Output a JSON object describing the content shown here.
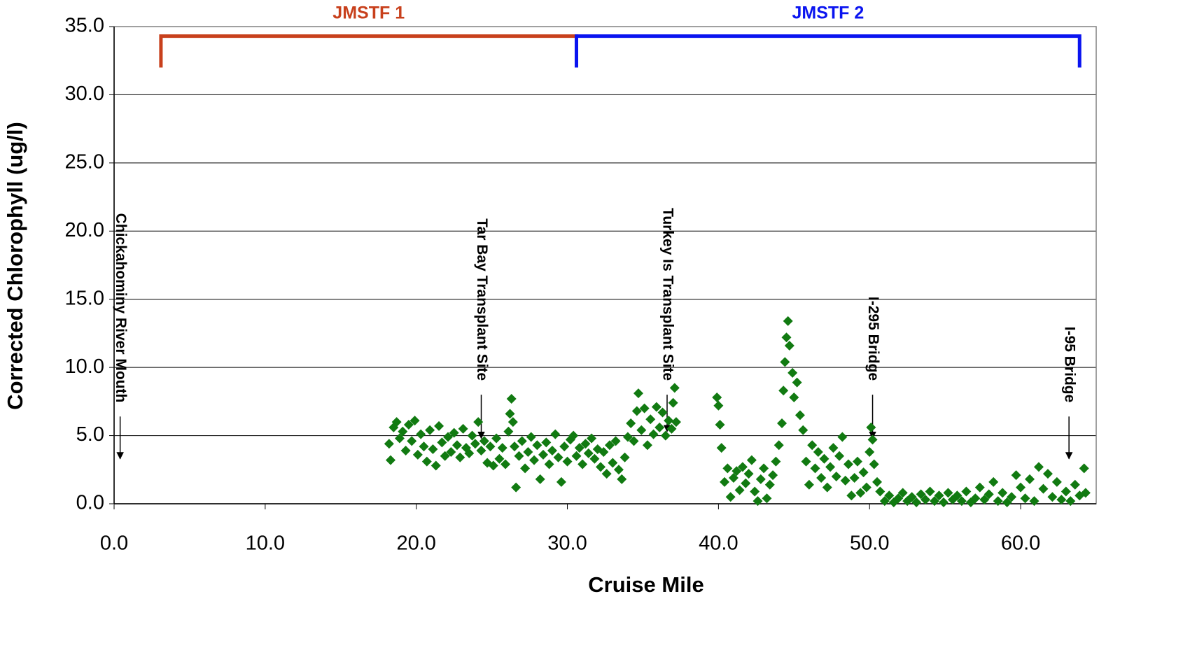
{
  "chart_data": {
    "type": "scatter",
    "xlabel": "Cruise Mile",
    "ylabel": "Corrected Chlorophyll (ug/l)",
    "xlim": [
      0,
      65
    ],
    "ylim": [
      0,
      35
    ],
    "xticks": [
      {
        "value": 0,
        "label": "0.0"
      },
      {
        "value": 10,
        "label": "10.0"
      },
      {
        "value": 20,
        "label": "20.0"
      },
      {
        "value": 30,
        "label": "30.0"
      },
      {
        "value": 40,
        "label": "40.0"
      },
      {
        "value": 50,
        "label": "50.0"
      },
      {
        "value": 60,
        "label": "60.0"
      }
    ],
    "yticks": [
      {
        "value": 0,
        "label": "0.0"
      },
      {
        "value": 5,
        "label": "5.0"
      },
      {
        "value": 10,
        "label": "10.0"
      },
      {
        "value": 15,
        "label": "15.0"
      },
      {
        "value": 20,
        "label": "20.0"
      },
      {
        "value": 25,
        "label": "25.0"
      },
      {
        "value": 30,
        "label": "30.0"
      },
      {
        "value": 35,
        "label": "35.0"
      }
    ],
    "grid": true,
    "x": [
      18.2,
      18.3,
      18.5,
      18.7,
      18.9,
      19.1,
      19.3,
      19.5,
      19.7,
      19.9,
      20.1,
      20.3,
      20.5,
      20.7,
      20.9,
      21.1,
      21.3,
      21.5,
      21.7,
      21.9,
      22.1,
      22.3,
      22.5,
      22.7,
      22.9,
      23.1,
      23.3,
      23.5,
      23.7,
      23.9,
      24.1,
      24.3,
      24.5,
      24.7,
      24.9,
      25.1,
      25.3,
      25.5,
      25.7,
      25.9,
      26.1,
      26.2,
      26.3,
      26.4,
      26.5,
      26.6,
      26.8,
      27.0,
      27.2,
      27.4,
      27.6,
      27.8,
      28.0,
      28.2,
      28.4,
      28.6,
      28.8,
      29.0,
      29.2,
      29.4,
      29.6,
      29.8,
      30.0,
      30.2,
      30.4,
      30.6,
      30.8,
      31.0,
      31.2,
      31.4,
      31.6,
      31.8,
      32.0,
      32.2,
      32.4,
      32.6,
      32.8,
      33.0,
      33.2,
      33.4,
      33.6,
      33.8,
      34.0,
      34.2,
      34.4,
      34.6,
      34.7,
      34.9,
      35.1,
      35.3,
      35.5,
      35.7,
      35.9,
      36.1,
      36.3,
      36.5,
      36.7,
      36.9,
      37.0,
      37.1,
      37.2,
      39.9,
      40.0,
      40.1,
      40.2,
      40.4,
      40.6,
      40.8,
      41.0,
      41.2,
      41.4,
      41.6,
      41.8,
      42.0,
      42.2,
      42.4,
      42.6,
      42.8,
      43.0,
      43.2,
      43.4,
      43.6,
      43.8,
      44.0,
      44.2,
      44.3,
      44.4,
      44.5,
      44.6,
      44.7,
      44.9,
      45.0,
      45.2,
      45.4,
      45.6,
      45.8,
      46.0,
      46.2,
      46.4,
      46.6,
      46.8,
      47.0,
      47.2,
      47.4,
      47.6,
      47.8,
      48.0,
      48.2,
      48.4,
      48.6,
      48.8,
      49.0,
      49.2,
      49.4,
      49.6,
      49.8,
      50.0,
      50.1,
      50.2,
      50.3,
      50.5,
      50.7,
      51.0,
      51.3,
      51.6,
      51.9,
      52.2,
      52.5,
      52.8,
      53.1,
      53.4,
      53.7,
      54.0,
      54.3,
      54.6,
      54.9,
      55.2,
      55.5,
      55.8,
      56.1,
      56.4,
      56.7,
      57.0,
      57.3,
      57.6,
      57.9,
      58.2,
      58.5,
      58.8,
      59.1,
      59.4,
      59.7,
      60.0,
      60.3,
      60.6,
      60.9,
      61.2,
      61.5,
      61.8,
      62.1,
      62.4,
      62.7,
      63.0,
      63.3,
      63.6,
      63.9,
      64.2,
      64.3
    ],
    "series": [
      {
        "color": "#117a11",
        "values": [
          4.4,
          3.2,
          5.6,
          6.0,
          4.8,
          5.3,
          3.9,
          5.8,
          4.6,
          6.1,
          3.6,
          5.1,
          4.2,
          3.1,
          5.4,
          4.0,
          2.8,
          5.7,
          4.5,
          3.5,
          4.9,
          3.8,
          5.2,
          4.3,
          3.4,
          5.5,
          4.1,
          3.7,
          5.0,
          4.4,
          6.0,
          3.9,
          4.6,
          3.0,
          4.2,
          2.8,
          4.8,
          3.3,
          4.1,
          2.9,
          5.3,
          6.6,
          7.7,
          6.0,
          4.2,
          1.2,
          3.5,
          4.6,
          2.6,
          3.8,
          4.9,
          3.2,
          4.3,
          1.8,
          3.6,
          4.5,
          2.9,
          3.9,
          5.1,
          3.4,
          1.6,
          4.2,
          3.1,
          4.7,
          5.0,
          3.5,
          4.1,
          2.9,
          4.4,
          3.7,
          4.8,
          3.3,
          4.0,
          2.7,
          3.8,
          2.2,
          4.3,
          3.0,
          4.6,
          2.5,
          1.8,
          3.4,
          4.9,
          5.9,
          4.6,
          6.8,
          8.1,
          5.4,
          7.0,
          4.3,
          6.2,
          5.1,
          7.1,
          5.6,
          6.7,
          5.0,
          6.1,
          5.5,
          7.4,
          8.5,
          6.0,
          7.8,
          7.2,
          5.8,
          4.1,
          1.6,
          2.6,
          0.5,
          1.9,
          2.4,
          1.0,
          2.7,
          1.5,
          2.2,
          3.2,
          0.9,
          0.2,
          1.8,
          2.6,
          0.4,
          1.4,
          2.1,
          3.1,
          4.3,
          5.9,
          8.3,
          10.4,
          12.2,
          13.4,
          11.6,
          9.6,
          7.8,
          8.9,
          6.5,
          5.4,
          3.1,
          1.4,
          4.3,
          2.6,
          3.8,
          1.9,
          3.3,
          1.2,
          2.7,
          4.1,
          2.0,
          3.5,
          4.9,
          1.7,
          2.9,
          0.6,
          1.9,
          3.1,
          0.8,
          2.3,
          1.2,
          3.8,
          5.6,
          4.7,
          2.9,
          1.6,
          0.9,
          0.2,
          0.6,
          0.1,
          0.4,
          0.8,
          0.2,
          0.5,
          0.1,
          0.7,
          0.3,
          0.9,
          0.2,
          0.6,
          0.1,
          0.8,
          0.3,
          0.6,
          0.2,
          0.9,
          0.1,
          0.4,
          1.2,
          0.3,
          0.7,
          1.6,
          0.2,
          0.8,
          0.1,
          0.5,
          2.1,
          1.2,
          0.4,
          1.8,
          0.2,
          2.7,
          1.1,
          2.2,
          0.5,
          1.6,
          0.3,
          0.9,
          0.2,
          1.4,
          0.6,
          2.6,
          0.8
        ]
      }
    ],
    "brackets": [
      {
        "label": "JMSTF 1",
        "color": "#c8401c",
        "x": [
          3.1,
          30.6
        ],
        "y": [
          34.3,
          32.0
        ]
      },
      {
        "label": "JMSTF 2",
        "color": "#0a14f0",
        "x": [
          30.6,
          63.9
        ],
        "y": [
          34.3,
          32.0
        ]
      }
    ],
    "sites": [
      {
        "label": "Chickahominy River Mouth",
        "x": 0.4,
        "y": [
          6.4,
          3.3
        ]
      },
      {
        "label": "Tar Bay Transplant Site",
        "x": 24.3,
        "y": [
          8.0,
          4.8
        ]
      },
      {
        "label": "Turkey Is Transplant Site",
        "x": 36.6,
        "y": [
          8.0,
          5.3
        ]
      },
      {
        "label": "I-295 Bridge",
        "x": 50.2,
        "y": [
          8.0,
          4.8
        ]
      },
      {
        "label": "I-95 Bridge",
        "x": 63.2,
        "y": [
          6.4,
          3.3
        ]
      }
    ]
  }
}
